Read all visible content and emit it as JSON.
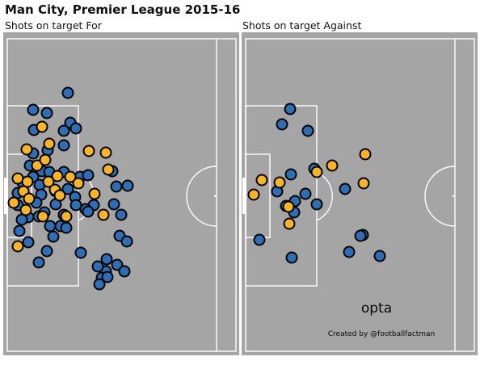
{
  "title": "Man City, Premier League 2015-16",
  "colors": {
    "pitch": "#a5a5a5",
    "lines": "#ffffff",
    "blue": "#2f6db5",
    "orange": "#f9b42c",
    "outline": "#000000"
  },
  "chart_data": [
    {
      "type": "scatter",
      "title": "Shots on target For",
      "series": [
        {
          "color": "#2f6db5",
          "points": [
            [
              84,
              115
            ],
            [
              41,
              136
            ],
            [
              58,
              140
            ],
            [
              87,
              152
            ],
            [
              42,
              161
            ],
            [
              79,
              162
            ],
            [
              94,
              159
            ],
            [
              79,
              180
            ],
            [
              59,
              186
            ],
            [
              41,
              190
            ],
            [
              37,
              205
            ],
            [
              52,
              212
            ],
            [
              41,
              219
            ],
            [
              61,
              213
            ],
            [
              79,
              213
            ],
            [
              99,
              219
            ],
            [
              109,
              217
            ],
            [
              28,
              226
            ],
            [
              49,
              229
            ],
            [
              84,
              234
            ],
            [
              22,
              239
            ],
            [
              51,
              241
            ],
            [
              69,
              237
            ],
            [
              93,
              244
            ],
            [
              139,
              212
            ],
            [
              144,
              231
            ],
            [
              158,
              230
            ],
            [
              116,
              254
            ],
            [
              22,
              254
            ],
            [
              45,
              251
            ],
            [
              69,
              253
            ],
            [
              94,
              254
            ],
            [
              106,
              259
            ],
            [
              141,
              253
            ],
            [
              35,
              269
            ],
            [
              48,
              268
            ],
            [
              55,
              263
            ],
            [
              79,
              266
            ],
            [
              109,
              262
            ],
            [
              27,
              272
            ],
            [
              75,
              280
            ],
            [
              62,
              280
            ],
            [
              150,
              266
            ],
            [
              35,
              300
            ],
            [
              24,
              286
            ],
            [
              66,
              293
            ],
            [
              58,
              311
            ],
            [
              100,
              313
            ],
            [
              148,
              292
            ],
            [
              157,
              299
            ],
            [
              48,
              325
            ],
            [
              132,
              321
            ],
            [
              145,
              328
            ],
            [
              131,
              336
            ],
            [
              121,
              330
            ],
            [
              126,
              344
            ],
            [
              154,
              336
            ],
            [
              133,
              343
            ],
            [
              123,
              352
            ],
            [
              82,
              282
            ]
          ]
        },
        {
          "color": "#f9b42c",
          "points": [
            [
              52,
              157
            ],
            [
              61,
              178
            ],
            [
              33,
              185
            ],
            [
              110,
              187
            ],
            [
              131,
              189
            ],
            [
              46,
              205
            ],
            [
              56,
              198
            ],
            [
              22,
              221
            ],
            [
              34,
              225
            ],
            [
              71,
              218
            ],
            [
              87,
              219
            ],
            [
              134,
              210
            ],
            [
              29,
              237
            ],
            [
              60,
              225
            ],
            [
              68,
              235
            ],
            [
              97,
              227
            ],
            [
              17,
              251
            ],
            [
              36,
              246
            ],
            [
              74,
              242
            ],
            [
              117,
              240
            ],
            [
              32,
              260
            ],
            [
              82,
              268
            ],
            [
              53,
              268
            ],
            [
              128,
              266
            ],
            [
              22,
              305
            ]
          ]
        }
      ]
    },
    {
      "type": "scatter",
      "title": "Shots on target Against",
      "series": [
        {
          "color": "#2f6db5",
          "points": [
            [
              359,
              135
            ],
            [
              349,
              154
            ],
            [
              381,
              162
            ],
            [
              360,
              216
            ],
            [
              389,
              209
            ],
            [
              343,
              237
            ],
            [
              378,
              240
            ],
            [
              427,
              234
            ],
            [
              365,
              249
            ],
            [
              354,
              255
            ],
            [
              392,
              253
            ],
            [
              364,
              263
            ],
            [
              449,
              291
            ],
            [
              321,
              297
            ],
            [
              446,
              292
            ],
            [
              432,
              312
            ],
            [
              470,
              317
            ],
            [
              361,
              319
            ]
          ]
        },
        {
          "color": "#f9b42c",
          "points": [
            [
              452,
              191
            ],
            [
              411,
              205
            ],
            [
              392,
              213
            ],
            [
              324,
              223
            ],
            [
              346,
              226
            ],
            [
              450,
              227
            ],
            [
              314,
              241
            ],
            [
              357,
              256
            ],
            [
              358,
              277
            ]
          ]
        }
      ]
    }
  ],
  "branding": {
    "logo": "opta",
    "credit": "Created by @footballfactman"
  }
}
